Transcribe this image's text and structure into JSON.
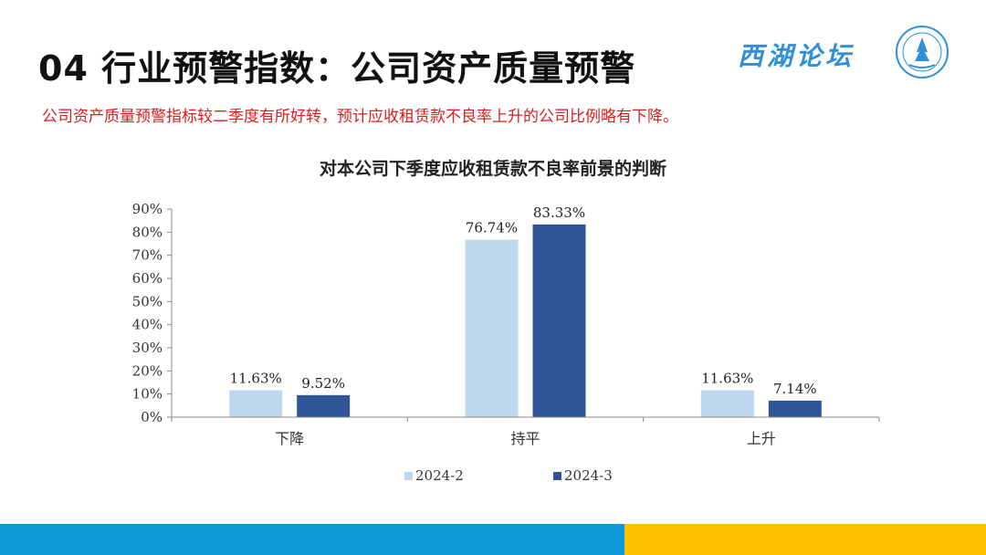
{
  "header": {
    "title": "04 行业预警指数：公司资产质量预警",
    "subtitle": "公司资产质量预警指标较二季度有所好转，预计应收租赁款不良率上升的公司比例略有下降。",
    "brand": "西湖论坛"
  },
  "colors": {
    "series_light": "#bdd7ee",
    "series_dark": "#2f5597",
    "footer_blue": "#0d99d9",
    "footer_yellow": "#ffc000",
    "subtitle_red": "#d81e1e"
  },
  "chart_data": {
    "type": "bar",
    "title": "对本公司下季度应收租赁款不良率前景的判断",
    "categories": [
      "下降",
      "持平",
      "上升"
    ],
    "series": [
      {
        "name": "2024-2",
        "values": [
          11.63,
          76.74,
          11.63
        ],
        "labels": [
          "11.63%",
          "76.74%",
          "11.63%"
        ]
      },
      {
        "name": "2024-3",
        "values": [
          9.52,
          83.33,
          7.14
        ],
        "labels": [
          "9.52%",
          "83.33%",
          "7.14%"
        ]
      }
    ],
    "ylim": [
      0,
      90
    ],
    "yticks": [
      "0%",
      "10%",
      "20%",
      "30%",
      "40%",
      "50%",
      "60%",
      "70%",
      "80%",
      "90%"
    ],
    "legend_position": "bottom",
    "grid": false
  }
}
